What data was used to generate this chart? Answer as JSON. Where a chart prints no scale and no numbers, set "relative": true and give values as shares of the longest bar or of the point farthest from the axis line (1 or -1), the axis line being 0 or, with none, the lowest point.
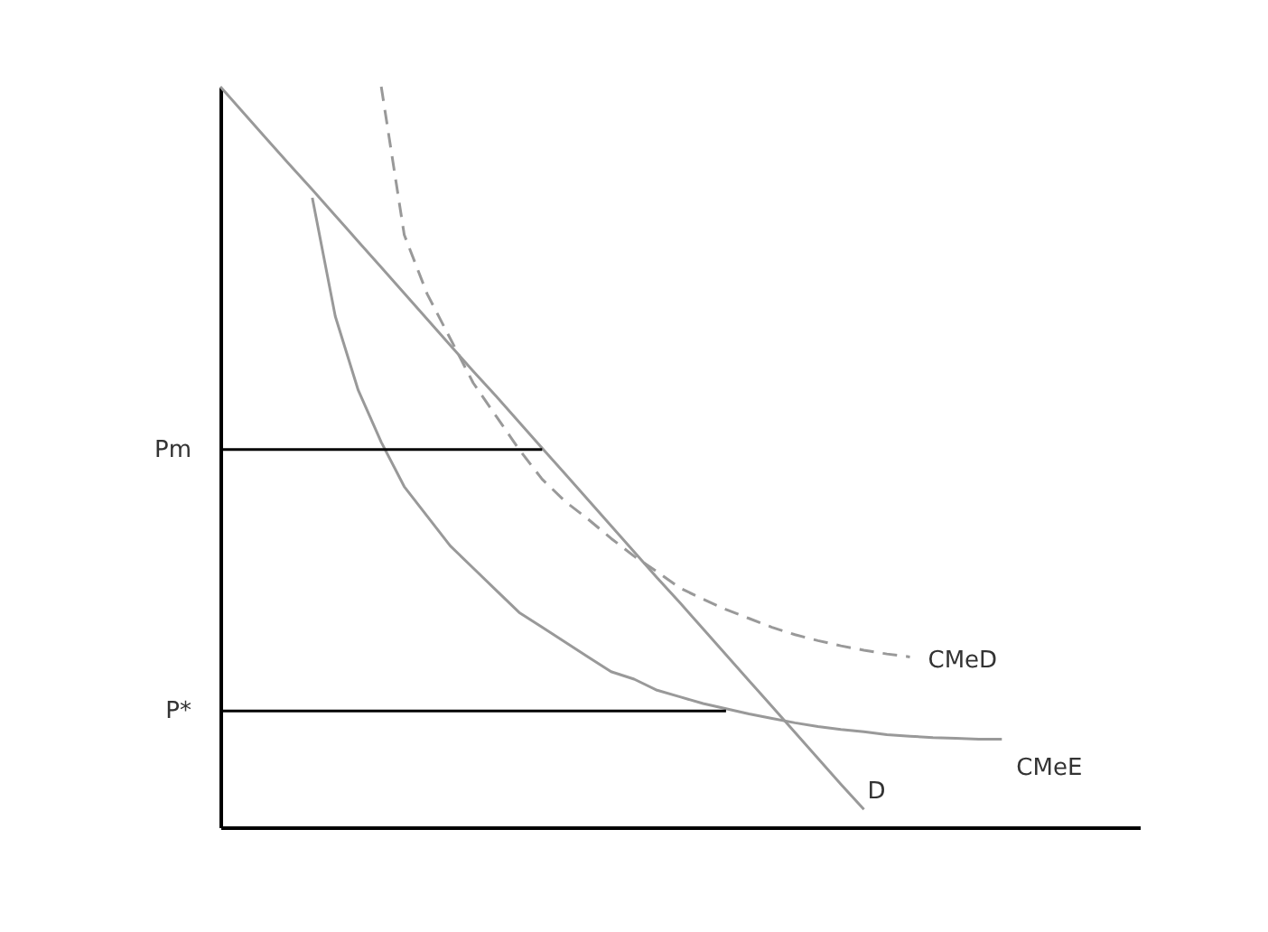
{
  "chart_data": {
    "type": "line",
    "relative": true,
    "categories": [
      null,
      null,
      null,
      null,
      null,
      null,
      null,
      null,
      null,
      null,
      null,
      null,
      null,
      null,
      null,
      null,
      null,
      null,
      null,
      null,
      null,
      null,
      null,
      null,
      null,
      null,
      null,
      null,
      null,
      null,
      null,
      null,
      null,
      null,
      null,
      null,
      null,
      null,
      null,
      null,
      null
    ],
    "series": [
      {
        "name": "CMeE",
        "color": "#999999",
        "line_style": "solid",
        "values": [
          null,
          null,
          null,
          null,
          0.85,
          0.69,
          0.59,
          0.52,
          0.46,
          0.42,
          0.38,
          0.35,
          0.32,
          0.29,
          0.27,
          0.25,
          0.23,
          0.21,
          0.2,
          0.185,
          0.176,
          0.167,
          0.16,
          0.153,
          0.147,
          0.141,
          0.136,
          0.132,
          0.129,
          0.125,
          0.123,
          0.121,
          0.12,
          0.119,
          0.119,
          null,
          null,
          null,
          null,
          null,
          null
        ]
      },
      {
        "name": "CMeD",
        "color": "#999999",
        "line_style": "dashed",
        "values": [
          null,
          null,
          null,
          null,
          null,
          null,
          null,
          1.0,
          0.8,
          0.72,
          0.66,
          0.6,
          0.555,
          0.51,
          0.47,
          0.44,
          0.416,
          0.39,
          0.366,
          0.345,
          0.323,
          0.308,
          0.294,
          0.282,
          0.27,
          0.26,
          0.252,
          0.245,
          0.239,
          0.234,
          0.23,
          null,
          null,
          null,
          null,
          null,
          null,
          null,
          null,
          null,
          null
        ]
      },
      {
        "name": "D",
        "color": "#999999",
        "line_style": "solid",
        "values": [
          1.0,
          0.965,
          0.93,
          0.895,
          0.861,
          0.826,
          0.791,
          0.756,
          0.721,
          0.686,
          0.651,
          0.616,
          0.582,
          0.547,
          0.512,
          0.477,
          0.442,
          0.407,
          0.372,
          0.337,
          0.303,
          0.268,
          0.233,
          0.198,
          0.163,
          0.128,
          0.093,
          0.058,
          0.024,
          null,
          null,
          null,
          null,
          null,
          null,
          null,
          null,
          null,
          null,
          null,
          null
        ]
      },
      {
        "name": "Pm",
        "color": "#000000",
        "line_style": "solid",
        "values": [
          0.51,
          0.51,
          0.51,
          0.51,
          0.51,
          0.51,
          0.51,
          0.51,
          0.51,
          0.51,
          0.51,
          0.51,
          0.51,
          0.51,
          0.51,
          null,
          null,
          null,
          null,
          null,
          null,
          null,
          null,
          null,
          null,
          null,
          null,
          null,
          null,
          null,
          null,
          null,
          null,
          null,
          null,
          null,
          null,
          null,
          null,
          null,
          null
        ]
      },
      {
        "name": "P*",
        "color": "#000000",
        "line_style": "solid",
        "values": [
          0.157,
          0.157,
          0.157,
          0.157,
          0.157,
          0.157,
          0.157,
          0.157,
          0.157,
          0.157,
          0.157,
          0.157,
          0.157,
          0.157,
          0.157,
          0.157,
          0.157,
          0.157,
          0.157,
          0.157,
          0.157,
          0.157,
          0.157,
          null,
          null,
          null,
          null,
          null,
          null,
          null,
          null,
          null,
          null,
          null,
          null,
          null,
          null,
          null,
          null,
          null,
          null
        ]
      }
    ]
  }
}
